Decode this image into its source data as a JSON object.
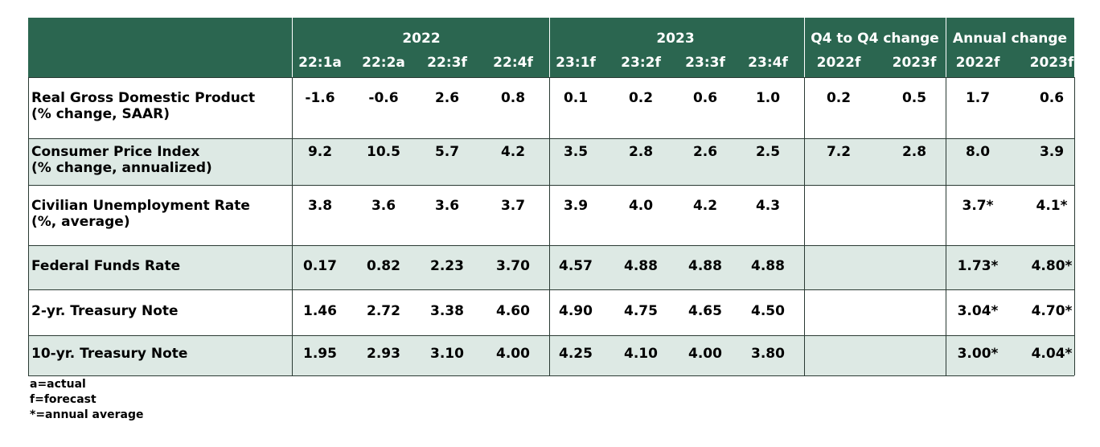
{
  "table": {
    "column_groups": [
      "2022",
      "2023",
      "Q4 to Q4 change",
      "Annual change"
    ],
    "columns": [
      "22:1a",
      "22:2a",
      "22:3f",
      "22:4f",
      "23:1f",
      "23:2f",
      "23:3f",
      "23:4f",
      "2022f",
      "2023f",
      "2022f",
      "2023f"
    ],
    "rows": [
      {
        "label": [
          "Real Gross Domestic Product",
          "(% change, SAAR)"
        ],
        "cells": [
          "-1.6",
          "-0.6",
          "2.6",
          "0.8",
          "0.1",
          "0.2",
          "0.6",
          "1.0",
          "0.2",
          "0.5",
          "1.7",
          "0.6"
        ]
      },
      {
        "label": [
          "Consumer Price Index",
          "(% change, annualized)"
        ],
        "cells": [
          "9.2",
          "10.5",
          "5.7",
          "4.2",
          "3.5",
          "2.8",
          "2.6",
          "2.5",
          "7.2",
          "2.8",
          "8.0",
          "3.9"
        ]
      },
      {
        "label": [
          "Civilian Unemployment Rate",
          "(%, average)"
        ],
        "cells": [
          "3.8",
          "3.6",
          "3.6",
          "3.7",
          "3.9",
          "4.0",
          "4.2",
          "4.3",
          null,
          null,
          "3.7*",
          "4.1*"
        ]
      },
      {
        "label": [
          "Federal Funds Rate"
        ],
        "cells": [
          "0.17",
          "0.82",
          "2.23",
          "3.70",
          "4.57",
          "4.88",
          "4.88",
          "4.88",
          null,
          null,
          "1.73*",
          "4.80*"
        ]
      },
      {
        "label": [
          "2-yr. Treasury Note"
        ],
        "cells": [
          "1.46",
          "2.72",
          "3.38",
          "4.60",
          "4.90",
          "4.75",
          "4.65",
          "4.50",
          null,
          null,
          "3.04*",
          "4.70*"
        ]
      },
      {
        "label": [
          "10-yr. Treasury Note"
        ],
        "cells": [
          "1.95",
          "2.93",
          "3.10",
          "4.00",
          "4.25",
          "4.10",
          "4.00",
          "3.80",
          null,
          null,
          "3.00*",
          "4.04*"
        ]
      }
    ]
  },
  "notes": [
    "a=actual",
    "f=forecast",
    "*=annual average"
  ]
}
